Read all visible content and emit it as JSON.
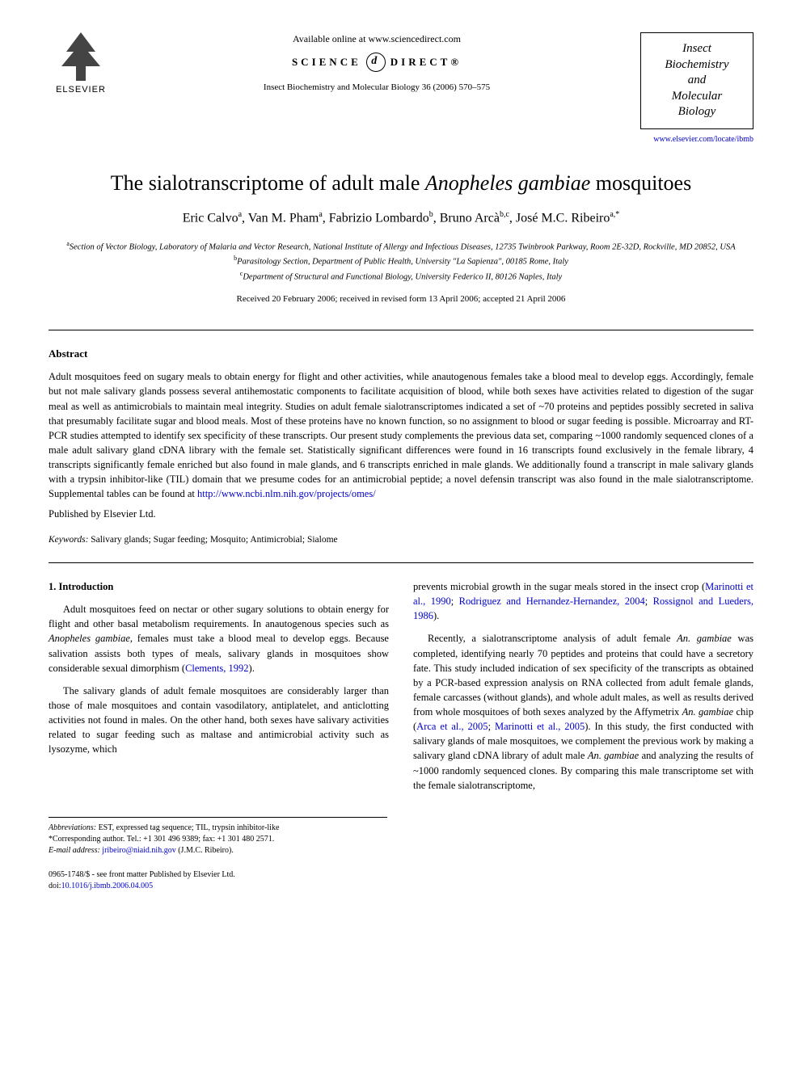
{
  "header": {
    "publisher_logo_label": "ELSEVIER",
    "available_online": "Available online at www.sciencedirect.com",
    "science_left": "SCIENCE",
    "science_right": "DIRECT®",
    "citation": "Insect Biochemistry and Molecular Biology 36 (2006) 570–575",
    "journal_name_line1": "Insect",
    "journal_name_line2": "Biochemistry",
    "journal_name_line3": "and",
    "journal_name_line4": "Molecular",
    "journal_name_line5": "Biology",
    "journal_url": "www.elsevier.com/locate/ibmb"
  },
  "title": {
    "pre": "The sialotranscriptome of adult male ",
    "italic": "Anopheles gambiae",
    "post": " mosquitoes"
  },
  "authors": {
    "a1_name": "Eric Calvo",
    "a1_aff": "a",
    "a2_name": "Van M. Pham",
    "a2_aff": "a",
    "a3_name": "Fabrizio Lombardo",
    "a3_aff": "b",
    "a4_name": "Bruno Arcà",
    "a4_aff": "b,c",
    "a5_name": "José M.C. Ribeiro",
    "a5_aff": "a,*"
  },
  "affiliations": {
    "a": "Section of Vector Biology, Laboratory of Malaria and Vector Research, National Institute of Allergy and Infectious Diseases, 12735 Twinbrook Parkway, Room 2E-32D, Rockville, MD 20852, USA",
    "b": "Parasitology Section, Department of Public Health, University \"La Sapienza\", 00185 Rome, Italy",
    "c": "Department of Structural and Functional Biology, University Federico II, 80126 Naples, Italy"
  },
  "dates": "Received 20 February 2006; received in revised form 13 April 2006; accepted 21 April 2006",
  "abstract": {
    "heading": "Abstract",
    "body": "Adult mosquitoes feed on sugary meals to obtain energy for flight and other activities, while anautogenous females take a blood meal to develop eggs. Accordingly, female but not male salivary glands possess several antihemostatic components to facilitate acquisition of blood, while both sexes have activities related to digestion of the sugar meal as well as antimicrobials to maintain meal integrity. Studies on adult female sialotranscriptomes indicated a set of ~70 proteins and peptides possibly secreted in saliva that presumably facilitate sugar and blood meals. Most of these proteins have no known function, so no assignment to blood or sugar feeding is possible. Microarray and RT-PCR studies attempted to identify sex specificity of these transcripts. Our present study complements the previous data set, comparing ~1000 randomly sequenced clones of a male adult salivary gland cDNA library with the female set. Statistically significant differences were found in 16 transcripts found exclusively in the female library, 4 transcripts significantly female enriched but also found in male glands, and 6 transcripts enriched in male glands. We additionally found a transcript in male salivary glands with a trypsin inhibitor-like (TIL) domain that we presume codes for an antimicrobial peptide; a novel defensin transcript was also found in the male sialotranscriptome. Supplemental tables can be found at ",
    "link": "http://www.ncbi.nlm.nih.gov/projects/omes/",
    "publisher": "Published by Elsevier Ltd."
  },
  "keywords": {
    "label": "Keywords:",
    "text": " Salivary glands; Sugar feeding; Mosquito; Antimicrobial; Sialome"
  },
  "intro": {
    "heading": "1. Introduction",
    "p1_pre": "Adult mosquitoes feed on nectar or other sugary solutions to obtain energy for flight and other basal metabolism requirements. In anautogenous species such as ",
    "p1_italic": "Anopheles gambiae",
    "p1_post": ", females must take a blood meal to develop eggs. Because salivation assists both types of meals, salivary glands in mosquitoes show considerable sexual dimorphism (",
    "p1_ref": "Clements, 1992",
    "p1_end": ").",
    "p2": "The salivary glands of adult female mosquitoes are considerably larger than those of male mosquitoes and contain vasodilatory, antiplatelet, and anticlotting activities not found in males. On the other hand, both sexes have salivary activities related to sugar feeding such as maltase and antimicrobial activity such as lysozyme, which",
    "p3_pre": "prevents microbial growth in the sugar meals stored in the insect crop (",
    "p3_ref1": "Marinotti et al., 1990",
    "p3_sep1": "; ",
    "p3_ref2": "Rodriguez and Hernandez-Hernandez, 2004",
    "p3_sep2": "; ",
    "p3_ref3": "Rossignol and Lueders, 1986",
    "p3_end": ").",
    "p4_pre": "Recently, a sialotranscriptome analysis of adult female ",
    "p4_it1": "An. gambiae",
    "p4_mid1": " was completed, identifying nearly 70 peptides and proteins that could have a secretory fate. This study included indication of sex specificity of the transcripts as obtained by a PCR-based expression analysis on RNA collected from adult female glands, female carcasses (without glands), and whole adult males, as well as results derived from whole mosquitoes of both sexes analyzed by the Affymetrix ",
    "p4_it2": "An. gambiae",
    "p4_mid2": " chip (",
    "p4_ref1": "Arca et al., 2005",
    "p4_sep": "; ",
    "p4_ref2": "Marinotti et al., 2005",
    "p4_mid3": "). In this study, the first conducted with salivary glands of male mosquitoes, we complement the previous work by making a salivary gland cDNA library of adult male ",
    "p4_it3": "An. gambiae",
    "p4_end": " and analyzing the results of ~1000 randomly sequenced clones. By comparing this male transcriptome set with the female sialotranscriptome,"
  },
  "footnotes": {
    "abbrev_label": "Abbreviations:",
    "abbrev_text": " EST, expressed tag sequence; TIL, trypsin inhibitor-like",
    "corresp": "*Corresponding author. Tel.: +1 301 496 9389; fax: +1 301 480 2571.",
    "email_label": "E-mail address:",
    "email": "jribeiro@niaid.nih.gov",
    "email_name": " (J.M.C. Ribeiro)."
  },
  "footer": {
    "copyright": "0965-1748/$ - see front matter Published by Elsevier Ltd.",
    "doi_label": "doi:",
    "doi": "10.1016/j.ibmb.2006.04.005"
  }
}
